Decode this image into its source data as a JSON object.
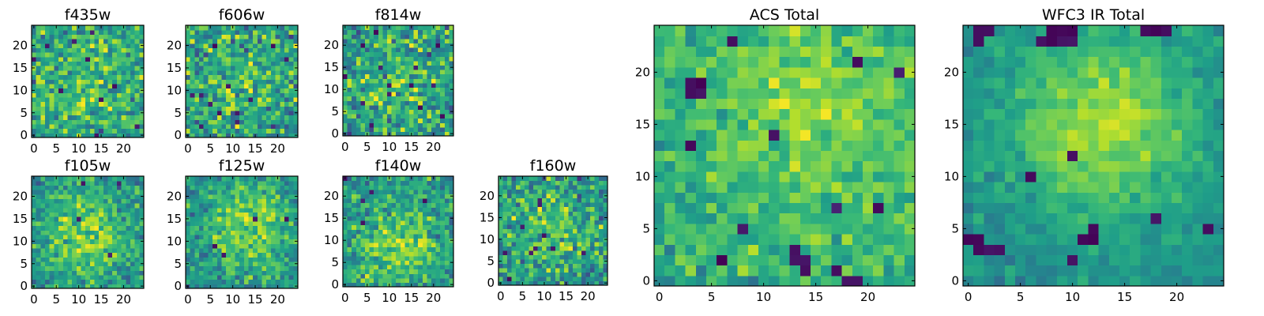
{
  "colormap": "viridis",
  "colors": {
    "frame": "#000000",
    "background": "#ffffff"
  },
  "chart_data": [
    {
      "id": "f435w",
      "type": "heatmap",
      "title": "f435w",
      "grid": false,
      "xlim": [
        -0.5,
        24.5
      ],
      "ylim": [
        -0.5,
        24.5
      ],
      "xticks": [
        0,
        5,
        10,
        15,
        20
      ],
      "yticks": [
        0,
        5,
        10,
        15,
        20
      ],
      "xticklabels": [
        "0",
        "5",
        "10",
        "15",
        "20"
      ],
      "yticklabels": [
        "0",
        "5",
        "10",
        "15",
        "20"
      ],
      "pattern": {
        "seed": 11,
        "center": [
          12,
          12
        ],
        "bg": 0.55,
        "peak": 0.15,
        "width": 9,
        "noise": 0.55,
        "dark_count": 10
      }
    },
    {
      "id": "f606w",
      "type": "heatmap",
      "title": "f606w",
      "grid": false,
      "xlim": [
        -0.5,
        24.5
      ],
      "ylim": [
        -0.5,
        24.5
      ],
      "xticks": [
        0,
        5,
        10,
        15,
        20
      ],
      "yticks": [
        0,
        5,
        10,
        15,
        20
      ],
      "xticklabels": [
        "0",
        "5",
        "10",
        "15",
        "20"
      ],
      "yticklabels": [
        "0",
        "5",
        "10",
        "15",
        "20"
      ],
      "pattern": {
        "seed": 23,
        "center": [
          12,
          12
        ],
        "bg": 0.52,
        "peak": 0.15,
        "width": 9,
        "noise": 0.6,
        "dark_count": 12
      }
    },
    {
      "id": "f814w",
      "type": "heatmap",
      "title": "f814w",
      "grid": false,
      "xlim": [
        -0.5,
        24.5
      ],
      "ylim": [
        -0.5,
        24.5
      ],
      "xticks": [
        0,
        5,
        10,
        15,
        20
      ],
      "yticks": [
        0,
        5,
        10,
        15,
        20
      ],
      "xticklabels": [
        "0",
        "5",
        "10",
        "15",
        "20"
      ],
      "yticklabels": [
        "0",
        "5",
        "10",
        "15",
        "20"
      ],
      "pattern": {
        "seed": 37,
        "center": [
          12,
          12
        ],
        "bg": 0.5,
        "peak": 0.18,
        "width": 9,
        "noise": 0.6,
        "dark_count": 14
      }
    },
    {
      "id": "f105w",
      "type": "heatmap",
      "title": "f105w",
      "grid": false,
      "xlim": [
        -0.5,
        24.5
      ],
      "ylim": [
        -0.5,
        24.5
      ],
      "xticks": [
        0,
        5,
        10,
        15,
        20
      ],
      "yticks": [
        0,
        5,
        10,
        15,
        20
      ],
      "xticklabels": [
        "0",
        "5",
        "10",
        "15",
        "20"
      ],
      "yticklabels": [
        "0",
        "5",
        "10",
        "15",
        "20"
      ],
      "pattern": {
        "seed": 41,
        "center": [
          12,
          11
        ],
        "bg": 0.5,
        "peak": 0.3,
        "width": 7,
        "noise": 0.42,
        "dark_count": 4
      }
    },
    {
      "id": "f125w",
      "type": "heatmap",
      "title": "f125w",
      "grid": false,
      "xlim": [
        -0.5,
        24.5
      ],
      "ylim": [
        -0.5,
        24.5
      ],
      "xticks": [
        0,
        5,
        10,
        15,
        20
      ],
      "yticks": [
        0,
        5,
        10,
        15,
        20
      ],
      "xticklabels": [
        "0",
        "5",
        "10",
        "15",
        "20"
      ],
      "yticklabels": [
        "0",
        "5",
        "10",
        "15",
        "20"
      ],
      "pattern": {
        "seed": 53,
        "center": [
          13,
          13
        ],
        "bg": 0.5,
        "peak": 0.3,
        "width": 7,
        "noise": 0.42,
        "dark_count": 4
      }
    },
    {
      "id": "f140w",
      "type": "heatmap",
      "title": "f140w",
      "grid": false,
      "xlim": [
        -0.5,
        24.5
      ],
      "ylim": [
        -0.5,
        24.5
      ],
      "xticks": [
        0,
        5,
        10,
        15,
        20
      ],
      "yticks": [
        0,
        5,
        10,
        15,
        20
      ],
      "xticklabels": [
        "0",
        "5",
        "10",
        "15",
        "20"
      ],
      "yticklabels": [
        "0",
        "5",
        "10",
        "15",
        "20"
      ],
      "pattern": {
        "seed": 67,
        "center": [
          12,
          9
        ],
        "bg": 0.52,
        "peak": 0.28,
        "width": 7,
        "noise": 0.45,
        "dark_count": 5
      }
    },
    {
      "id": "f160w",
      "type": "heatmap",
      "title": "f160w",
      "grid": false,
      "xlim": [
        -0.5,
        24.5
      ],
      "ylim": [
        -0.5,
        24.5
      ],
      "xticks": [
        0,
        5,
        10,
        15,
        20
      ],
      "yticks": [
        0,
        5,
        10,
        15,
        20
      ],
      "xticklabels": [
        "0",
        "5",
        "10",
        "15",
        "20"
      ],
      "yticklabels": [
        "0",
        "5",
        "10",
        "15",
        "20"
      ],
      "pattern": {
        "seed": 79,
        "center": [
          12,
          12
        ],
        "bg": 0.5,
        "peak": 0.2,
        "width": 8,
        "noise": 0.55,
        "dark_count": 10
      }
    },
    {
      "id": "acs-total",
      "type": "heatmap",
      "title": "ACS Total",
      "grid": false,
      "xlim": [
        -0.5,
        24.5
      ],
      "ylim": [
        -0.5,
        24.5
      ],
      "xticks": [
        0,
        5,
        10,
        15,
        20
      ],
      "yticks": [
        0,
        5,
        10,
        15,
        20
      ],
      "xticklabels": [
        "0",
        "5",
        "10",
        "15",
        "20"
      ],
      "yticklabels": [
        "0",
        "5",
        "10",
        "15",
        "20"
      ],
      "pattern": {
        "seed": 97,
        "center": [
          16,
          17
        ],
        "bg": 0.62,
        "peak": 0.18,
        "width": 8,
        "noise": 0.32,
        "dark_count": 6,
        "dark_cells": [
          [
            3,
            19
          ],
          [
            4,
            19
          ],
          [
            3,
            18
          ],
          [
            4,
            18
          ],
          [
            3,
            13
          ],
          [
            11,
            14
          ],
          [
            13,
            2
          ],
          [
            14,
            2
          ],
          [
            13,
            3
          ],
          [
            17,
            1
          ],
          [
            14,
            1
          ],
          [
            6,
            2
          ],
          [
            18,
            0
          ],
          [
            19,
            0
          ]
        ]
      }
    },
    {
      "id": "wfc3-ir-total",
      "type": "heatmap",
      "title": "WFC3 IR Total",
      "grid": false,
      "xlim": [
        -0.5,
        24.5
      ],
      "ylim": [
        -0.5,
        24.5
      ],
      "xticks": [
        0,
        5,
        10,
        15,
        20
      ],
      "yticks": [
        0,
        5,
        10,
        15,
        20
      ],
      "xticklabels": [
        "0",
        "5",
        "10",
        "15",
        "20"
      ],
      "yticklabels": [
        "0",
        "5",
        "10",
        "15",
        "20"
      ],
      "pattern": {
        "seed": 113,
        "center": [
          13,
          15
        ],
        "bg": 0.5,
        "peak": 0.38,
        "width": 6,
        "noise": 0.2,
        "dark_count": 3,
        "dark_cells": [
          [
            1,
            24
          ],
          [
            2,
            24
          ],
          [
            1,
            23
          ],
          [
            8,
            24
          ],
          [
            9,
            24
          ],
          [
            10,
            24
          ],
          [
            7,
            23
          ],
          [
            8,
            23
          ],
          [
            9,
            23
          ],
          [
            10,
            23
          ],
          [
            18,
            24
          ],
          [
            19,
            24
          ],
          [
            17,
            24
          ],
          [
            6,
            10
          ],
          [
            18,
            6
          ],
          [
            23,
            5
          ],
          [
            11,
            4
          ],
          [
            12,
            4
          ],
          [
            12,
            5
          ],
          [
            0,
            4
          ],
          [
            1,
            4
          ],
          [
            2,
            3
          ],
          [
            3,
            3
          ],
          [
            1,
            3
          ]
        ]
      }
    }
  ]
}
